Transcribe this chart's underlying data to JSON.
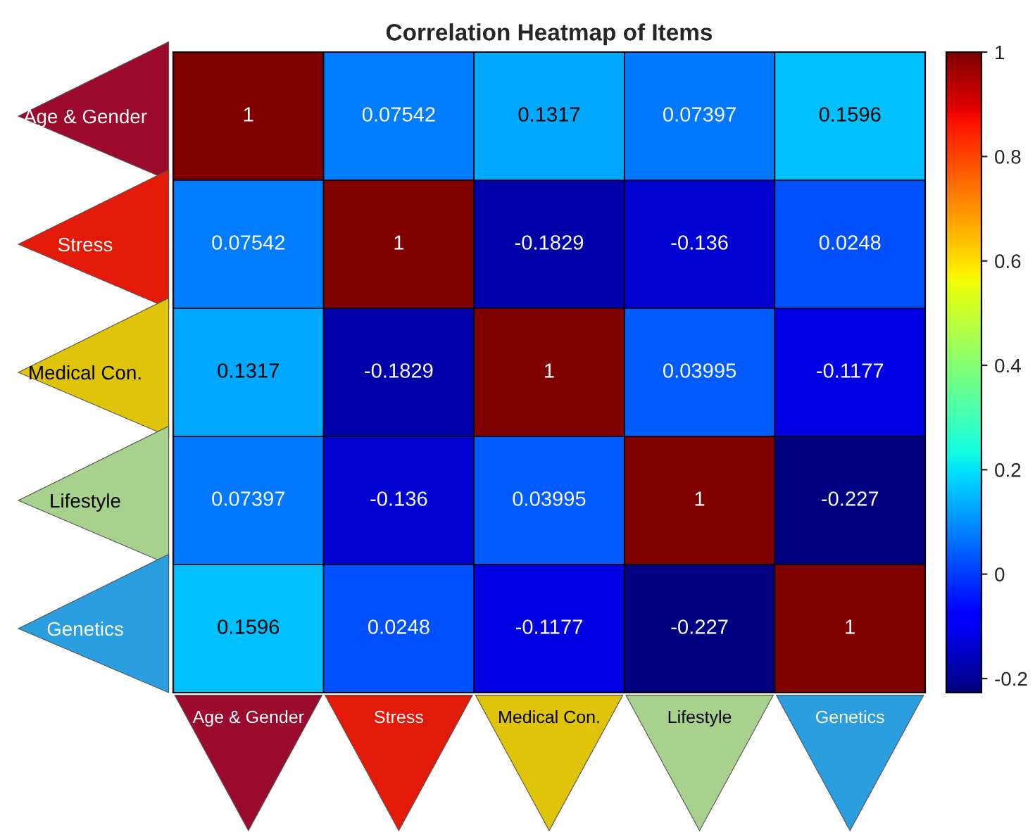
{
  "chart_data": {
    "type": "heatmap",
    "title": "Correlation Heatmap of Items",
    "categories": [
      "Age & Gender",
      "Stress",
      "Medical Con.",
      "Lifestyle",
      "Genetics"
    ],
    "y_categories": [
      "Age & Gender",
      "Stress",
      "Medical Con.",
      "Lifestyle",
      "Genetics"
    ],
    "cells": [
      [
        1,
        0.07542,
        0.1317,
        0.07397,
        0.1596
      ],
      [
        0.07542,
        1,
        -0.1829,
        -0.136,
        0.0248
      ],
      [
        0.1317,
        -0.1829,
        1,
        0.03995,
        -0.1177
      ],
      [
        0.07397,
        -0.136,
        0.03995,
        1,
        -0.227
      ],
      [
        0.1596,
        0.0248,
        -0.1177,
        -0.227,
        1
      ]
    ],
    "data_labels": true,
    "clim": [
      -0.227,
      1
    ],
    "cticks": [
      -0.2,
      0,
      0.2,
      0.4,
      0.6,
      0.8,
      1
    ]
  }
}
